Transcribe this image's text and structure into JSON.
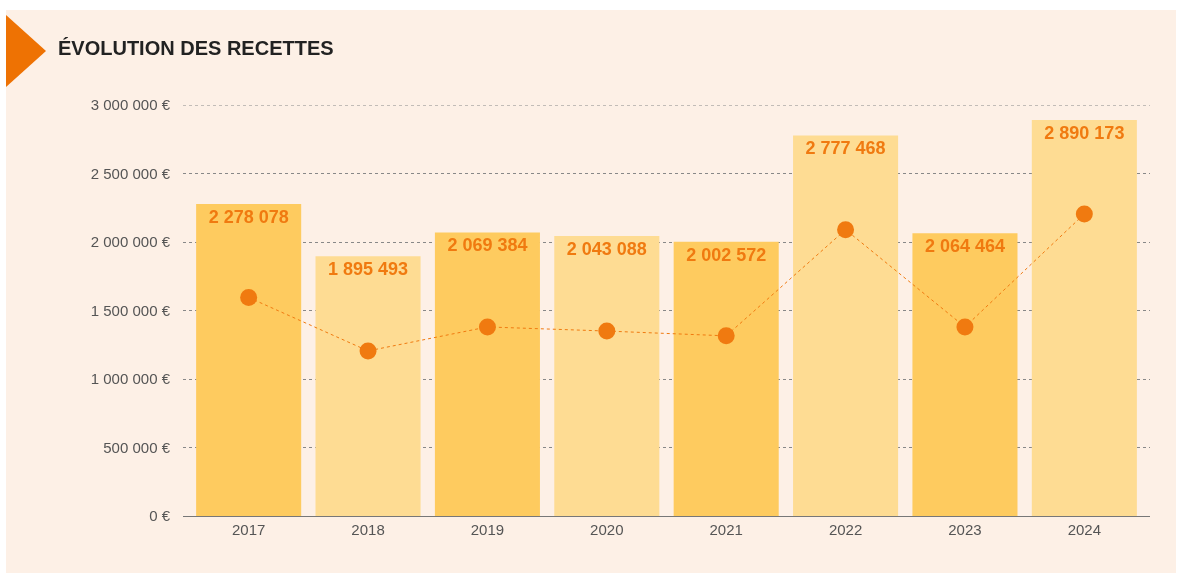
{
  "chart_data": {
    "type": "bar",
    "title": "ÉVOLUTION DES RECETTES",
    "categories": [
      "2017",
      "2018",
      "2019",
      "2020",
      "2021",
      "2022",
      "2023",
      "2024"
    ],
    "series": [
      {
        "colors": [
          "#fecb5f",
          "#fedc93",
          "#fecb5f",
          "#fedc93",
          "#fecb5f",
          "#fedc93",
          "#fecb5f",
          "#fedc93"
        ],
        "values": [
          2278078,
          1895493,
          2069384,
          2043088,
          2002572,
          2777468,
          2064464,
          2890173
        ],
        "value_labels": [
          "2 278 078",
          "1 895 493",
          "2 069 384",
          "2 043 088",
          "2 002 572",
          "2 777 468",
          "2 064 464",
          "2 890 173"
        ]
      },
      {
        "type": "line",
        "color": "#f07a10",
        "values": [
          1595000,
          1205000,
          1380000,
          1350000,
          1315000,
          2090000,
          1380000,
          2205000
        ]
      }
    ],
    "ylim": [
      0,
      3000000
    ],
    "yticks": [
      {
        "value": 0,
        "label": "0 €"
      },
      {
        "value": 500000,
        "label": "500 000 €"
      },
      {
        "value": 1000000,
        "label": "1 000 000 €"
      },
      {
        "value": 1500000,
        "label": "1 500 000 €"
      },
      {
        "value": 2000000,
        "label": "2 000 000 €"
      },
      {
        "value": 2500000,
        "label": "2 500 000 €"
      },
      {
        "value": 3000000,
        "label": "3 000 000 €"
      }
    ],
    "grid": "y",
    "marker": "circle",
    "line_style": "dotted"
  }
}
